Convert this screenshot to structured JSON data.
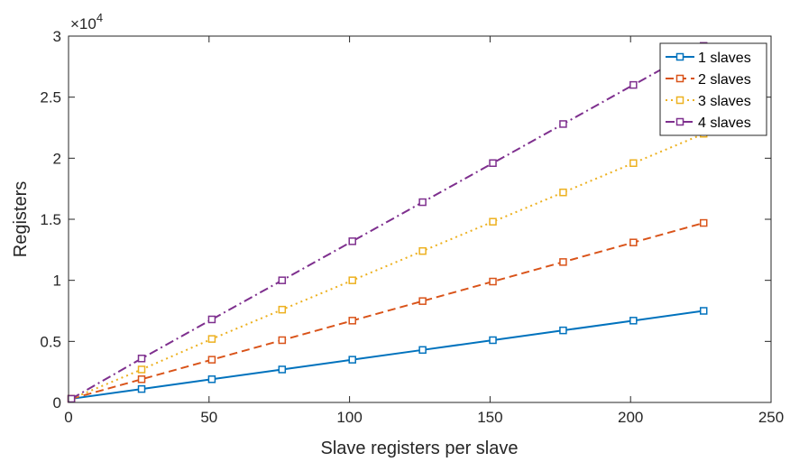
{
  "chart_data": {
    "type": "line",
    "xlabel": "Slave registers per slave",
    "ylabel": "Registers",
    "xlim": [
      0,
      250
    ],
    "ylim": [
      0,
      30000
    ],
    "xticks": [
      0,
      50,
      100,
      150,
      200,
      250
    ],
    "yticks": [
      0,
      5000,
      10000,
      15000,
      20000,
      25000,
      30000
    ],
    "ytick_labels": [
      "0",
      "0.5",
      "1",
      "1.5",
      "2",
      "2.5",
      "3"
    ],
    "xtick_labels": [
      "0",
      "50",
      "100",
      "150",
      "200",
      "250"
    ],
    "y_multiplier_base": "×10",
    "y_multiplier_exp": "4",
    "grid": false,
    "legend_position": "top-right",
    "x": [
      1,
      26,
      51,
      76,
      101,
      126,
      151,
      176,
      201,
      226
    ],
    "series": [
      {
        "name": "1 slaves",
        "color": "#0072BD",
        "line_style": "solid",
        "marker": "square",
        "values": [
          300,
          1100,
          1900,
          2700,
          3500,
          4300,
          5100,
          5900,
          6700,
          7500
        ]
      },
      {
        "name": "2 slaves",
        "color": "#D95319",
        "line_style": "dashed",
        "marker": "square",
        "values": [
          300,
          1900,
          3500,
          5100,
          6700,
          8300,
          9900,
          11500,
          13100,
          14700
        ]
      },
      {
        "name": "3 slaves",
        "color": "#EDB120",
        "line_style": "dotted",
        "marker": "square",
        "values": [
          300,
          2700,
          5200,
          7600,
          10000,
          12400,
          14800,
          17200,
          19600,
          22000
        ]
      },
      {
        "name": "4 slaves",
        "color": "#7E2F8E",
        "line_style": "dashdot",
        "marker": "square",
        "values": [
          300,
          3600,
          6800,
          10000,
          13200,
          16400,
          19600,
          22800,
          26000,
          29200
        ]
      }
    ]
  }
}
